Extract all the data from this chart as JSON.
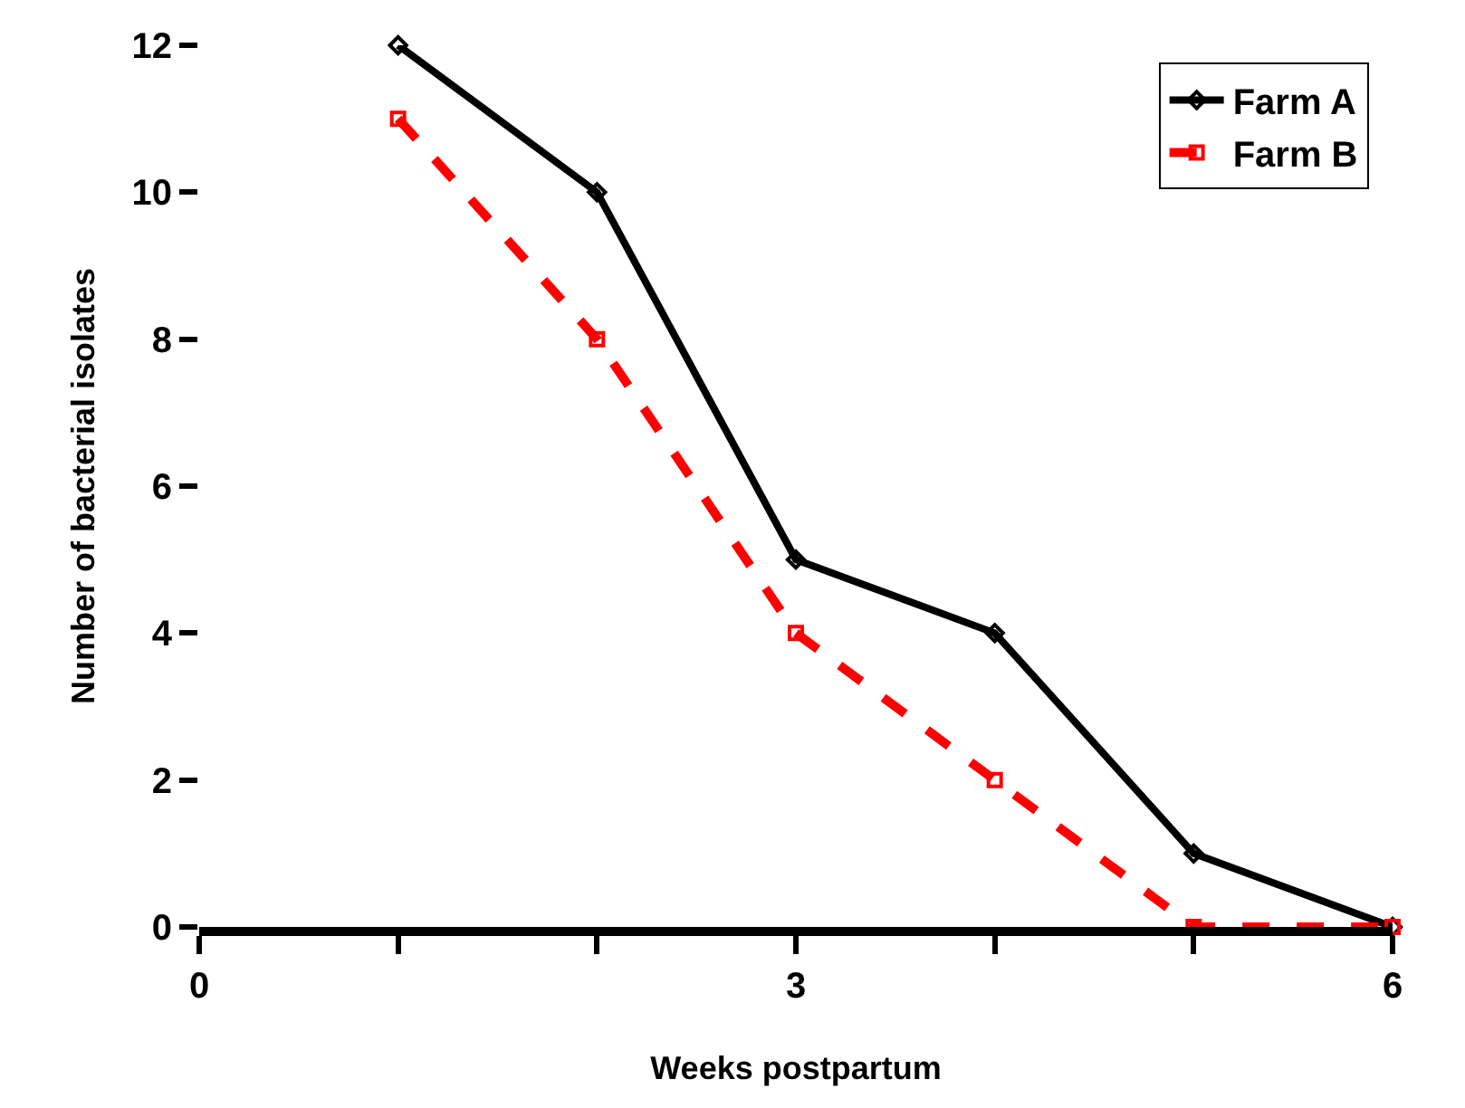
{
  "chart_data": {
    "type": "line",
    "xlabel": "Weeks postpartum",
    "ylabel": "Number of bacterial isolates",
    "x": [
      1,
      2,
      3,
      4,
      5,
      6
    ],
    "series": [
      {
        "name": "Farm A",
        "color": "#000000",
        "values": [
          12,
          10,
          5,
          4,
          1,
          0
        ],
        "marker": "diamond",
        "line_style": "solid"
      },
      {
        "name": "Farm B",
        "color": "#ff0000",
        "values": [
          11,
          8,
          4,
          2,
          0,
          0
        ],
        "marker": "square",
        "line_style": "dashed"
      }
    ],
    "xlim": [
      0,
      6
    ],
    "xticks": [
      0,
      {
        "value": 1,
        "label": null
      },
      {
        "value": 2,
        "label": null
      },
      3,
      {
        "value": 4,
        "label": null
      },
      {
        "value": 5,
        "label": null
      },
      6
    ],
    "ylim": [
      0,
      12
    ],
    "yticks": [
      0,
      2,
      4,
      6,
      8,
      10,
      12
    ],
    "legend": "top right"
  }
}
